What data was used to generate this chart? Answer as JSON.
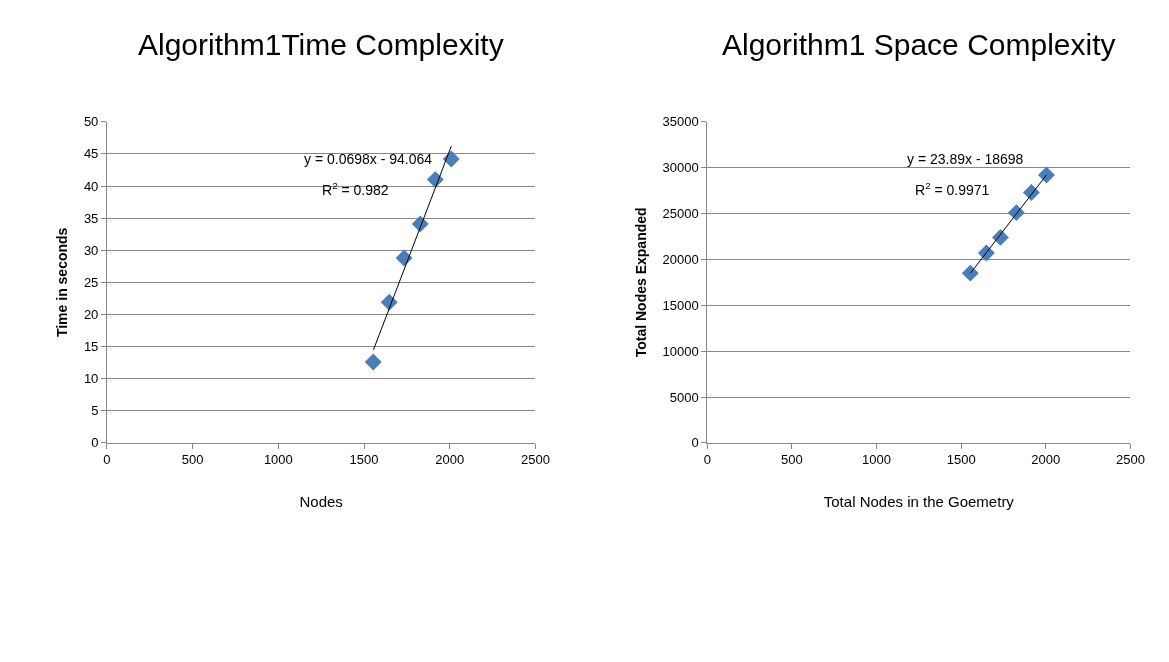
{
  "chart_data": [
    {
      "type": "scatter",
      "title": "Algorithm1Time Complexity",
      "xlabel": "Nodes",
      "ylabel": "Time in seconds",
      "grid": "y",
      "xlim": [
        0,
        2500
      ],
      "xticks": [
        0,
        500,
        1000,
        1500,
        2000,
        2500
      ],
      "ylim": [
        0,
        50
      ],
      "yticks": [
        0,
        5,
        10,
        15,
        20,
        25,
        30,
        35,
        40,
        45,
        50
      ],
      "annotations": [
        "y = 0.0698x - 94.064",
        "R$^{2}$ = 0.982"
      ],
      "series": [
        {
          "color": "#4a7ebb",
          "marker": "diamond",
          "x": [
            1554,
            1647,
            1734,
            1828,
            1916,
            2009
          ],
          "values": [
            12.6,
            21.9,
            28.8,
            34.1,
            41.0,
            44.2
          ]
        },
        {
          "type": "line",
          "marker": "none",
          "color": "#000000",
          "x": [
            1555,
            2009
          ],
          "values": [
            14.5,
            46.2
          ]
        }
      ]
    },
    {
      "type": "scatter",
      "title": "Algorithm1 Space Complexity",
      "xlabel": "Total Nodes in the Goemetry",
      "ylabel": "Total Nodes Expanded",
      "grid": "y",
      "xlim": [
        0,
        2500
      ],
      "xticks": [
        0,
        500,
        1000,
        1500,
        2000,
        2500
      ],
      "ylim": [
        0,
        35000
      ],
      "yticks": [
        0,
        5000,
        10000,
        15000,
        20000,
        25000,
        30000,
        35000
      ],
      "annotations": [
        "y = 23.89x - 18698",
        "R$^{2}$ = 0.9971"
      ],
      "series": [
        {
          "color": "#4a7ebb",
          "marker": "diamond",
          "x": [
            1554,
            1649,
            1732,
            1826,
            1915,
            2004
          ],
          "values": [
            18500,
            20700,
            22400,
            25100,
            27300,
            29200
          ]
        },
        {
          "type": "line",
          "marker": "none",
          "color": "#000000",
          "x": [
            1555,
            2004
          ],
          "values": [
            18500,
            29200
          ]
        }
      ]
    }
  ]
}
